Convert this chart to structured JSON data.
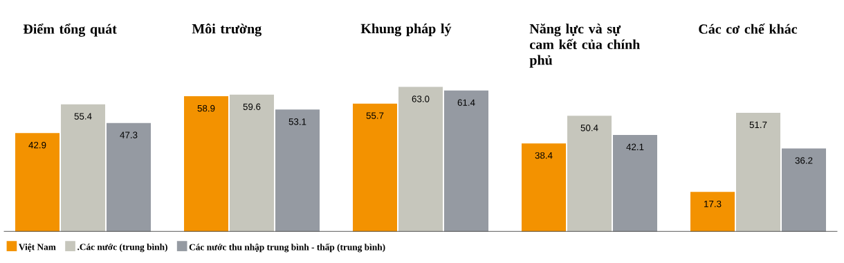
{
  "chart_data": {
    "type": "bar",
    "categories": [
      "Điểm tổng quát",
      "Môi trường",
      "Khung pháp lý",
      "Năng lực và sự cam kết của chính phủ",
      "Các cơ chế khác"
    ],
    "series": [
      {
        "name": "Việt Nam",
        "color": "#f39200",
        "values": [
          42.9,
          58.9,
          55.7,
          38.4,
          17.3
        ],
        "value_labels": [
          "42.9",
          "58.9",
          "55.7",
          "38.4",
          "17.3"
        ]
      },
      {
        "name": ".Các nước (trung bình)",
        "color": "#c6c6bc",
        "values": [
          55.4,
          59.6,
          63.0,
          50.4,
          51.7
        ],
        "value_labels": [
          "55.4",
          "59.6",
          "63.0",
          "50.4",
          "51.7"
        ]
      },
      {
        "name": "Các nước thu nhập trung bình - thấp (trung bình)",
        "color": "#959aa2",
        "values": [
          47.3,
          53.1,
          61.4,
          42.1,
          36.2
        ],
        "value_labels": [
          "47.3",
          "53.1",
          "61.4",
          "42.1",
          "36.2"
        ]
      }
    ],
    "legend": "bottom left"
  }
}
